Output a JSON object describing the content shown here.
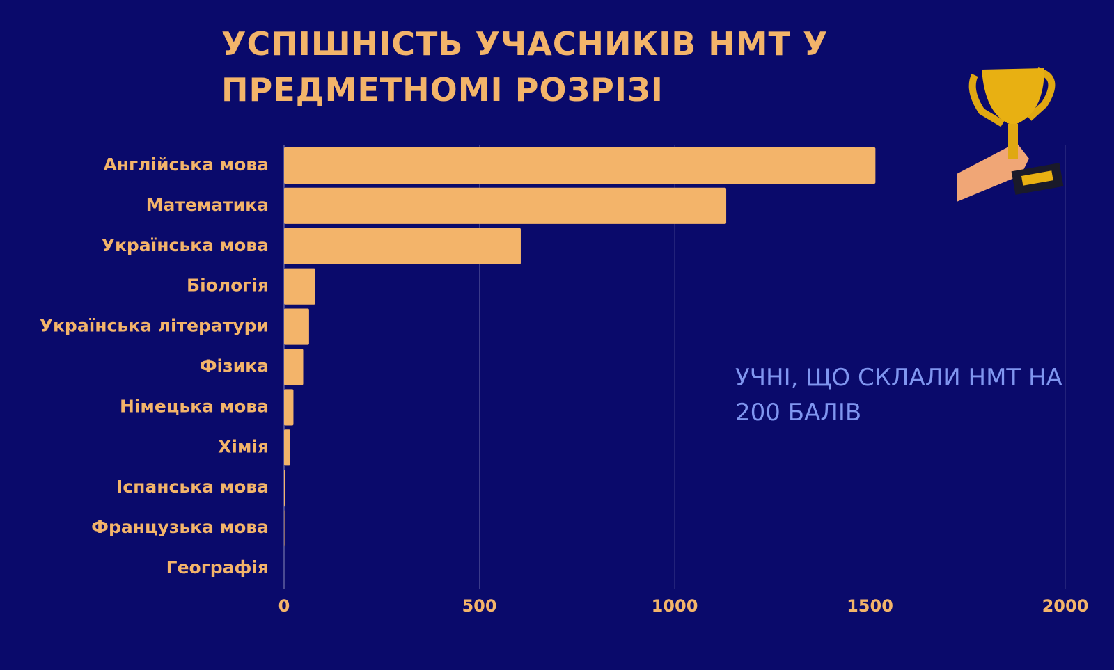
{
  "chart_data": {
    "type": "bar",
    "orientation": "horizontal",
    "title": "УСПІШНІСТЬ УЧАСНИКІВ НМТ У ПРЕДМЕТНОМІ РОЗРІЗІ",
    "annotation": "УЧНІ, ЩО СКЛАЛИ НМТ НА 200 БАЛІВ",
    "categories": [
      "Англійська мова",
      "Математика",
      "Українська мова",
      "Біологія",
      "Українська літератури",
      "Фізика",
      "Німецька мова",
      "Хімія",
      "Іспанська мова",
      "Французька мова",
      "Географія"
    ],
    "values": [
      1514,
      1132,
      606,
      80,
      64,
      49,
      24,
      16,
      3,
      1,
      0
    ],
    "color": "#f3b46a",
    "xlim": [
      0,
      2000
    ],
    "xticks": [
      0,
      500,
      1000,
      1500,
      2000
    ],
    "grid": true
  }
}
